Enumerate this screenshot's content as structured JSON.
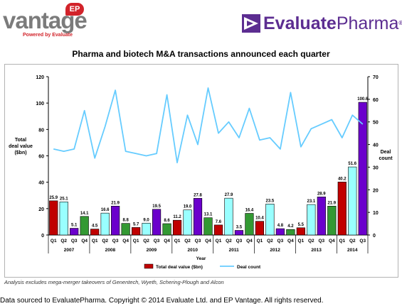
{
  "header": {
    "ep_logo_text": "vantage",
    "ep_badge": "EP",
    "ep_tagline": "Powered by Evaluate",
    "evaluate_logo_bold": "Evaluate",
    "evaluate_logo_light": "Pharma",
    "evaluate_logo_reg": "®"
  },
  "title": "Pharma and biotech M&A transactions announced each quarter",
  "footnote": "Analysis excludes mega-merger takeovers of Genentech, Wyeth, Schering-Plough and Alcon",
  "copyright": "Data sourced to EvaluatePharma. Copyright © 2014 Evaluate Ltd. and EP Vantage. All rights reserved.",
  "colors": {
    "Q1": "#c00000",
    "Q2": "#99ffff",
    "Q3": "#6b00cc",
    "Q4": "#339933",
    "deal_line": "#66ccff",
    "brand": "#5c2d91",
    "ep_red": "#d2232a"
  },
  "chart_data": {
    "type": "bar",
    "categories": [
      "Q1",
      "Q2",
      "Q3",
      "Q4",
      "Q1",
      "Q2",
      "Q3",
      "Q4",
      "Q1",
      "Q2",
      "Q3",
      "Q4",
      "Q1",
      "Q2",
      "Q3",
      "Q4",
      "Q1",
      "Q2",
      "Q3",
      "Q4",
      "Q1",
      "Q2",
      "Q3",
      "Q4",
      "Q1",
      "Q2",
      "Q3",
      "Q4",
      "Q1",
      "Q2",
      "Q3"
    ],
    "years": [
      "2007",
      "2008",
      "2009",
      "2010",
      "2011",
      "2012",
      "2013",
      "2014"
    ],
    "series": [
      {
        "name": "Total deal value ($bn)",
        "axis": "left",
        "values": [
          25.9,
          25.1,
          5.1,
          14.1,
          4.5,
          16.6,
          21.9,
          8.8,
          5.7,
          9.0,
          19.5,
          8.6,
          11.2,
          19.0,
          27.8,
          13.1,
          7.6,
          27.9,
          3.5,
          16.4,
          10.4,
          23.5,
          4.8,
          4.2,
          5.5,
          23.1,
          28.9,
          21.9,
          40.2,
          51.6,
          100.6
        ]
      },
      {
        "name": "Deal count",
        "axis": "right",
        "type": "line",
        "values": [
          38,
          37,
          38,
          55,
          34,
          48,
          64,
          37,
          36,
          35,
          36,
          62,
          32,
          53,
          40,
          65,
          45,
          50,
          43,
          56,
          42,
          43,
          38,
          63,
          39,
          47,
          49,
          51,
          43,
          53,
          49
        ]
      }
    ],
    "bar_labels": [
      "25.9",
      "25.1",
      "5.1",
      "14.1",
      "4.5",
      "16.6",
      "21.9",
      "8.8",
      "5.7",
      "9.0",
      "19.5",
      "8.6",
      "11.2",
      "19.0",
      "27.8",
      "13.1",
      "7.6",
      "27.9",
      "3.5",
      "16.4",
      "10.4",
      "23.5",
      "4.8",
      "4.2",
      "5.5",
      "23.1",
      "28.9",
      "21.9",
      "40.2",
      "51.6",
      "100.6"
    ],
    "ylabel": "Total deal value ($bn)",
    "y2label": "Deal count",
    "xlabel": "Year",
    "ylim": [
      0,
      120
    ],
    "y2lim": [
      0,
      70
    ],
    "yticks": [
      "0",
      "20",
      "40",
      "60",
      "80",
      "100",
      "120"
    ],
    "y2ticks": [
      "0",
      "10",
      "20",
      "30",
      "40",
      "50",
      "60",
      "70"
    ],
    "legend": [
      "Total deal value ($bn)",
      "Deal count"
    ],
    "legend_position": "bottom",
    "grid": false
  }
}
